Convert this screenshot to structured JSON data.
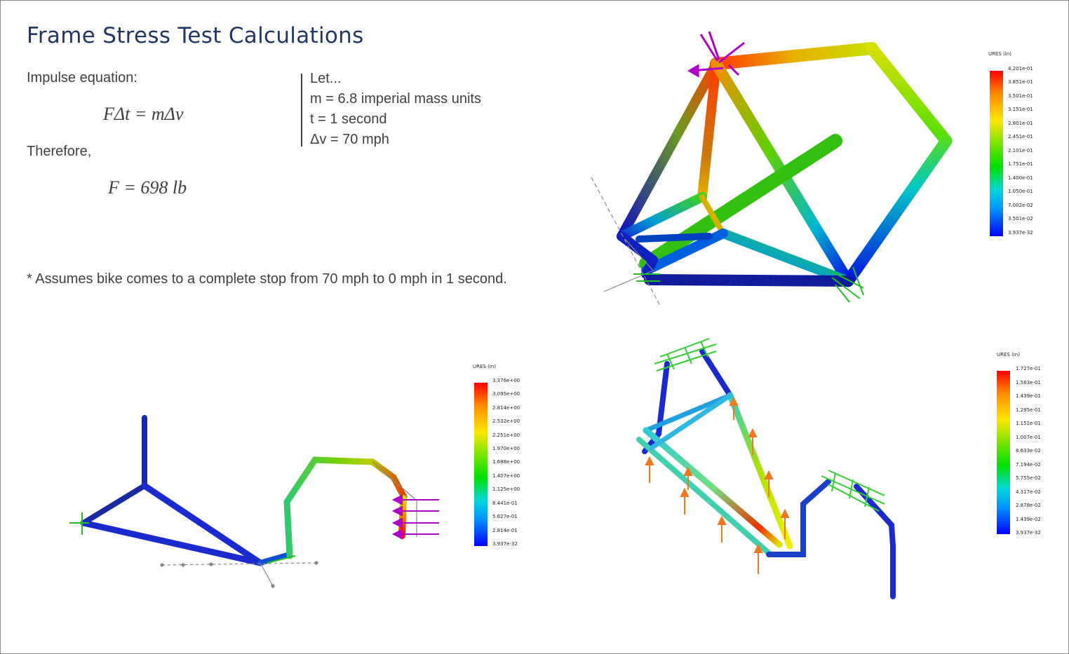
{
  "title": "Frame Stress Test Calculations",
  "impulse_label": "Impulse equation:",
  "equation1": "FΔt = mΔv",
  "therefore_label": "Therefore,",
  "equation2": "F = 698 lb",
  "let_lines": [
    "Let...",
    "m = 6.8 imperial mass units",
    "t = 1 second",
    "Δv = 70 mph"
  ],
  "footnote": "* Assumes bike comes to a complete stop from 70 mph to 0 mph in 1 second.",
  "colors": {
    "title": "#1f3864",
    "text": "#404040",
    "force_arrow": "#b000c8",
    "fixture": "#2fd02f",
    "load_arrow": "#f07820"
  },
  "legends": [
    {
      "title": "URES (in)",
      "ticks": [
        "4.201e-01",
        "3.851e-01",
        "3.501e-01",
        "3.151e-01",
        "2.801e-01",
        "2.451e-01",
        "2.101e-01",
        "1.751e-01",
        "1.400e-01",
        "1.050e-01",
        "7.002e-02",
        "3.501e-02",
        "3.937e-32"
      ]
    },
    {
      "title": "URES (in)",
      "ticks": [
        "3.376e+00",
        "3.095e+00",
        "2.814e+00",
        "2.532e+00",
        "2.251e+00",
        "1.970e+00",
        "1.688e+00",
        "1.407e+00",
        "1.125e+00",
        "8.441e-01",
        "5.627e-01",
        "2.814e-01",
        "3.937e-32"
      ]
    },
    {
      "title": "URES (in)",
      "ticks": [
        "1.727e-01",
        "1.583e-01",
        "1.439e-01",
        "1.295e-01",
        "1.151e-01",
        "1.007e-01",
        "8.633e-02",
        "7.194e-02",
        "5.755e-02",
        "4.317e-02",
        "2.878e-02",
        "1.439e-02",
        "3.937e-32"
      ]
    }
  ]
}
